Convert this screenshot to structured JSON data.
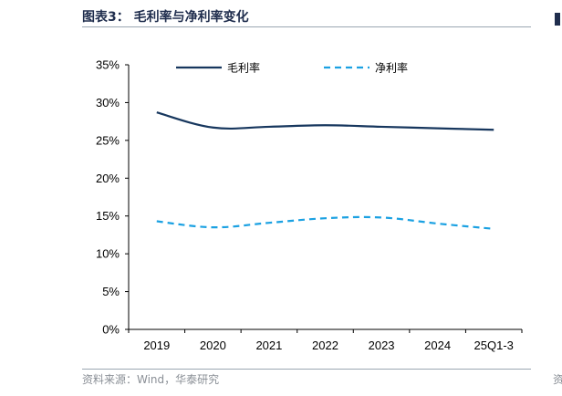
{
  "header": {
    "title": "图表3：  毛利率与净利率变化"
  },
  "footer": {
    "source": "资料来源：Wind，华泰研究",
    "edge_text": "资"
  },
  "chart_data": {
    "type": "line",
    "title": "毛利率与净利率变化",
    "categories": [
      "2019",
      "2020",
      "2021",
      "2022",
      "2023",
      "2024",
      "25Q1-3"
    ],
    "series": [
      {
        "name": "毛利率",
        "style": "solid",
        "color": "#17375e",
        "values": [
          28.7,
          26.7,
          26.8,
          27.0,
          26.8,
          26.6,
          26.4
        ]
      },
      {
        "name": "净利率",
        "style": "dashed",
        "color": "#1ba1e2",
        "values": [
          14.3,
          13.5,
          14.1,
          14.7,
          14.8,
          14.0,
          13.3
        ]
      }
    ],
    "yticks": [
      "0%",
      "5%",
      "10%",
      "15%",
      "20%",
      "25%",
      "30%",
      "35%"
    ],
    "ylim": [
      0,
      35
    ],
    "ylabel": "",
    "xlabel": "",
    "legend": "top"
  }
}
